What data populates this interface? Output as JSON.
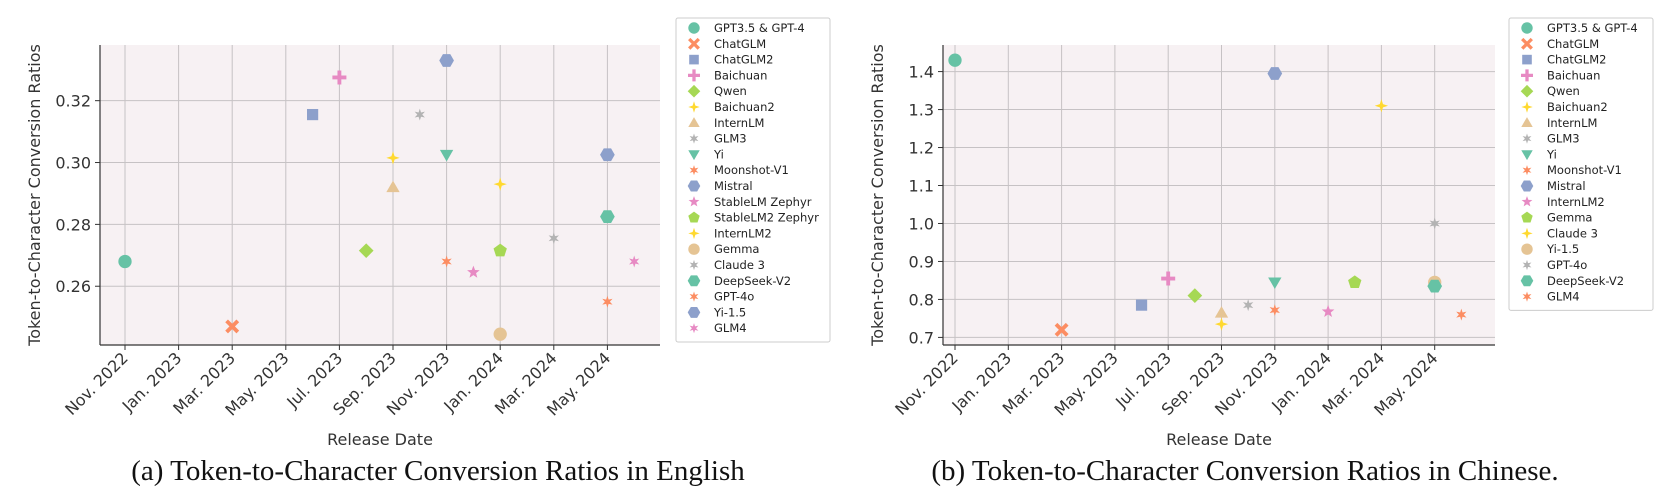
{
  "chart_data": [
    {
      "type": "scatter",
      "caption": "(a) Token-to-Character Conversion Ratios in English",
      "xlabel": "Release Date",
      "ylabel": "Token-to-Character Conversion Ratios",
      "x_ticks": [
        "Nov. 2022",
        "Jan. 2023",
        "Mar. 2023",
        "May. 2023",
        "Jul. 2023",
        "Sep. 2023",
        "Nov. 2023",
        "Jan. 2024",
        "Mar. 2024",
        "May. 2024"
      ],
      "y_ticks": [
        "0.26",
        "0.28",
        "0.30",
        "0.32"
      ],
      "ylim": [
        0.241,
        0.338
      ],
      "grid": true,
      "legend_position": "right",
      "series": [
        {
          "name": "GPT3.5 & GPT-4",
          "color": "#66c2a5",
          "marker": "circle",
          "x": "Nov. 2022",
          "y": 0.268
        },
        {
          "name": "ChatGLM",
          "color": "#fc8d62",
          "marker": "x",
          "x": "Mar. 2023",
          "y": 0.247
        },
        {
          "name": "ChatGLM2",
          "color": "#8da0cb",
          "marker": "square",
          "x": "Jun. 2023",
          "y": 0.3155
        },
        {
          "name": "Baichuan",
          "color": "#e78ac3",
          "marker": "plus",
          "x": "Jul. 2023",
          "y": 0.3275
        },
        {
          "name": "Qwen",
          "color": "#a6d854",
          "marker": "diamond",
          "x": "Aug. 2023",
          "y": 0.2715
        },
        {
          "name": "Baichuan2",
          "color": "#ffd92f",
          "marker": "star4",
          "x": "Sep. 2023",
          "y": 0.3015
        },
        {
          "name": "InternLM",
          "color": "#e5c494",
          "marker": "triangle-up",
          "x": "Sep. 2023",
          "y": 0.292
        },
        {
          "name": "GLM3",
          "color": "#b3b3b3",
          "marker": "star6",
          "x": "Oct. 2023",
          "y": 0.3155
        },
        {
          "name": "Yi",
          "color": "#66c2a5",
          "marker": "triangle-down",
          "x": "Nov. 2023",
          "y": 0.3025
        },
        {
          "name": "Moonshot-V1",
          "color": "#fc8d62",
          "marker": "star6",
          "x": "Nov. 2023",
          "y": 0.268
        },
        {
          "name": "Mistral",
          "color": "#8da0cb",
          "marker": "hexagon",
          "x": "Nov. 2023",
          "y": 0.333
        },
        {
          "name": "StableLM Zephyr",
          "color": "#e78ac3",
          "marker": "star5",
          "x": "Dec. 2023",
          "y": 0.2645
        },
        {
          "name": "StableLM2 Zephyr",
          "color": "#a6d854",
          "marker": "pentagon",
          "x": "Jan. 2024",
          "y": 0.2715
        },
        {
          "name": "InternLM2",
          "color": "#ffd92f",
          "marker": "star4",
          "x": "Jan. 2024",
          "y": 0.293
        },
        {
          "name": "Gemma",
          "color": "#e5c494",
          "marker": "circle",
          "x": "Jan. 2024",
          "y": 0.2445
        },
        {
          "name": "Claude 3",
          "color": "#b3b3b3",
          "marker": "star6",
          "x": "Mar. 2024",
          "y": 0.2755
        },
        {
          "name": "DeepSeek-V2",
          "color": "#66c2a5",
          "marker": "hexagon",
          "x": "May. 2024",
          "y": 0.2825
        },
        {
          "name": "GPT-4o",
          "color": "#fc8d62",
          "marker": "star6",
          "x": "May. 2024",
          "y": 0.255
        },
        {
          "name": "Yi-1.5",
          "color": "#8da0cb",
          "marker": "hexagon",
          "x": "May. 2024",
          "y": 0.3025
        },
        {
          "name": "GLM4",
          "color": "#e78ac3",
          "marker": "star6",
          "x": "Jun. 2024",
          "y": 0.268
        }
      ]
    },
    {
      "type": "scatter",
      "caption": "(b) Token-to-Character Conversion Ratios in Chinese.",
      "xlabel": "Release Date",
      "ylabel": "Token-to-Character Conversion Ratios",
      "x_ticks": [
        "Nov. 2022",
        "Jan. 2023",
        "Mar. 2023",
        "May. 2023",
        "Jul. 2023",
        "Sep. 2023",
        "Nov. 2023",
        "Jan. 2024",
        "Mar. 2024",
        "May. 2024"
      ],
      "y_ticks": [
        "0.7",
        "0.8",
        "0.9",
        "1.0",
        "1.1",
        "1.2",
        "1.3",
        "1.4"
      ],
      "ylim": [
        0.68,
        1.47
      ],
      "grid": true,
      "legend_position": "right",
      "series": [
        {
          "name": "GPT3.5 & GPT-4",
          "color": "#66c2a5",
          "marker": "circle",
          "x": "Nov. 2022",
          "y": 1.43
        },
        {
          "name": "ChatGLM",
          "color": "#fc8d62",
          "marker": "x",
          "x": "Mar. 2023",
          "y": 0.72
        },
        {
          "name": "ChatGLM2",
          "color": "#8da0cb",
          "marker": "square",
          "x": "Jun. 2023",
          "y": 0.785
        },
        {
          "name": "Baichuan",
          "color": "#e78ac3",
          "marker": "plus",
          "x": "Jul. 2023",
          "y": 0.855
        },
        {
          "name": "Qwen",
          "color": "#a6d854",
          "marker": "diamond",
          "x": "Aug. 2023",
          "y": 0.81
        },
        {
          "name": "Baichuan2",
          "color": "#ffd92f",
          "marker": "star4",
          "x": "Sep. 2023",
          "y": 0.735
        },
        {
          "name": "InternLM",
          "color": "#e5c494",
          "marker": "triangle-up",
          "x": "Sep. 2023",
          "y": 0.765
        },
        {
          "name": "GLM3",
          "color": "#b3b3b3",
          "marker": "star6",
          "x": "Oct. 2023",
          "y": 0.785
        },
        {
          "name": "Yi",
          "color": "#66c2a5",
          "marker": "triangle-down",
          "x": "Nov. 2023",
          "y": 0.845
        },
        {
          "name": "Moonshot-V1",
          "color": "#fc8d62",
          "marker": "star6",
          "x": "Nov. 2023",
          "y": 0.772
        },
        {
          "name": "Mistral",
          "color": "#8da0cb",
          "marker": "hexagon",
          "x": "Nov. 2023",
          "y": 1.395
        },
        {
          "name": "InternLM2",
          "color": "#e78ac3",
          "marker": "star5",
          "x": "Jan. 2024",
          "y": 0.768
        },
        {
          "name": "Gemma",
          "color": "#a6d854",
          "marker": "pentagon",
          "x": "Feb. 2024",
          "y": 0.845
        },
        {
          "name": "Claude 3",
          "color": "#ffd92f",
          "marker": "star4",
          "x": "Mar. 2024",
          "y": 1.31
        },
        {
          "name": "Yi-1.5",
          "color": "#e5c494",
          "marker": "circle",
          "x": "May. 2024",
          "y": 0.845
        },
        {
          "name": "GPT-4o",
          "color": "#b3b3b3",
          "marker": "star6",
          "x": "May. 2024",
          "y": 1.0
        },
        {
          "name": "DeepSeek-V2",
          "color": "#66c2a5",
          "marker": "hexagon",
          "x": "May. 2024",
          "y": 0.835
        },
        {
          "name": "GLM4",
          "color": "#fc8d62",
          "marker": "star6",
          "x": "Jun. 2024",
          "y": 0.76
        }
      ]
    }
  ]
}
